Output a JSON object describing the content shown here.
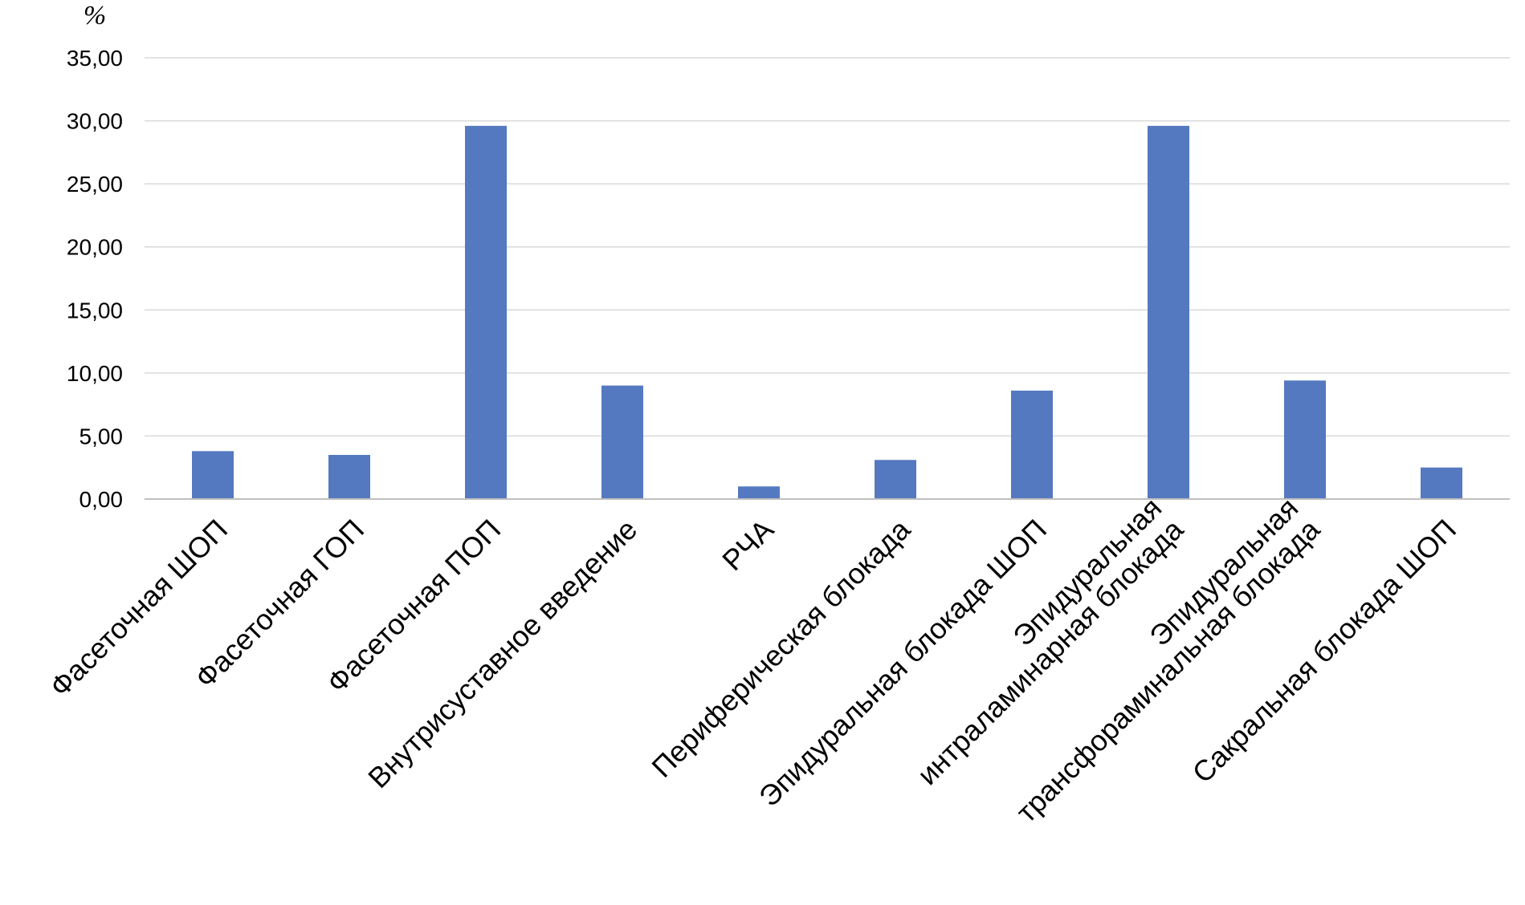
{
  "chart_data": {
    "type": "bar",
    "ylabel": "%",
    "categories": [
      [
        "Фасеточная ШОП"
      ],
      [
        "Фасеточная ГОП"
      ],
      [
        "Фасеточная ПОП"
      ],
      [
        "Внутрисуставное введение"
      ],
      [
        "РЧА"
      ],
      [
        "Периферическая блокада"
      ],
      [
        "Эпидуральная блокада ШОП"
      ],
      [
        "Эпидуральная",
        "интраламинарная блокада"
      ],
      [
        "Эпидуральная",
        "трансфораминальная  блокада"
      ],
      [
        "Сакральная блокада ШОП"
      ]
    ],
    "values": [
      3.8,
      3.5,
      29.6,
      9.0,
      1.0,
      3.1,
      8.6,
      29.6,
      9.4,
      2.5
    ],
    "ylim": [
      0,
      35
    ],
    "yticks": [
      "0,00",
      "5,00",
      "10,00",
      "15,00",
      "20,00",
      "25,00",
      "30,00",
      "35,00"
    ],
    "grid": true,
    "bar_color": "#5479c0",
    "grid_color": "#d9d9d9",
    "axis_color": "#bfbfbf"
  }
}
